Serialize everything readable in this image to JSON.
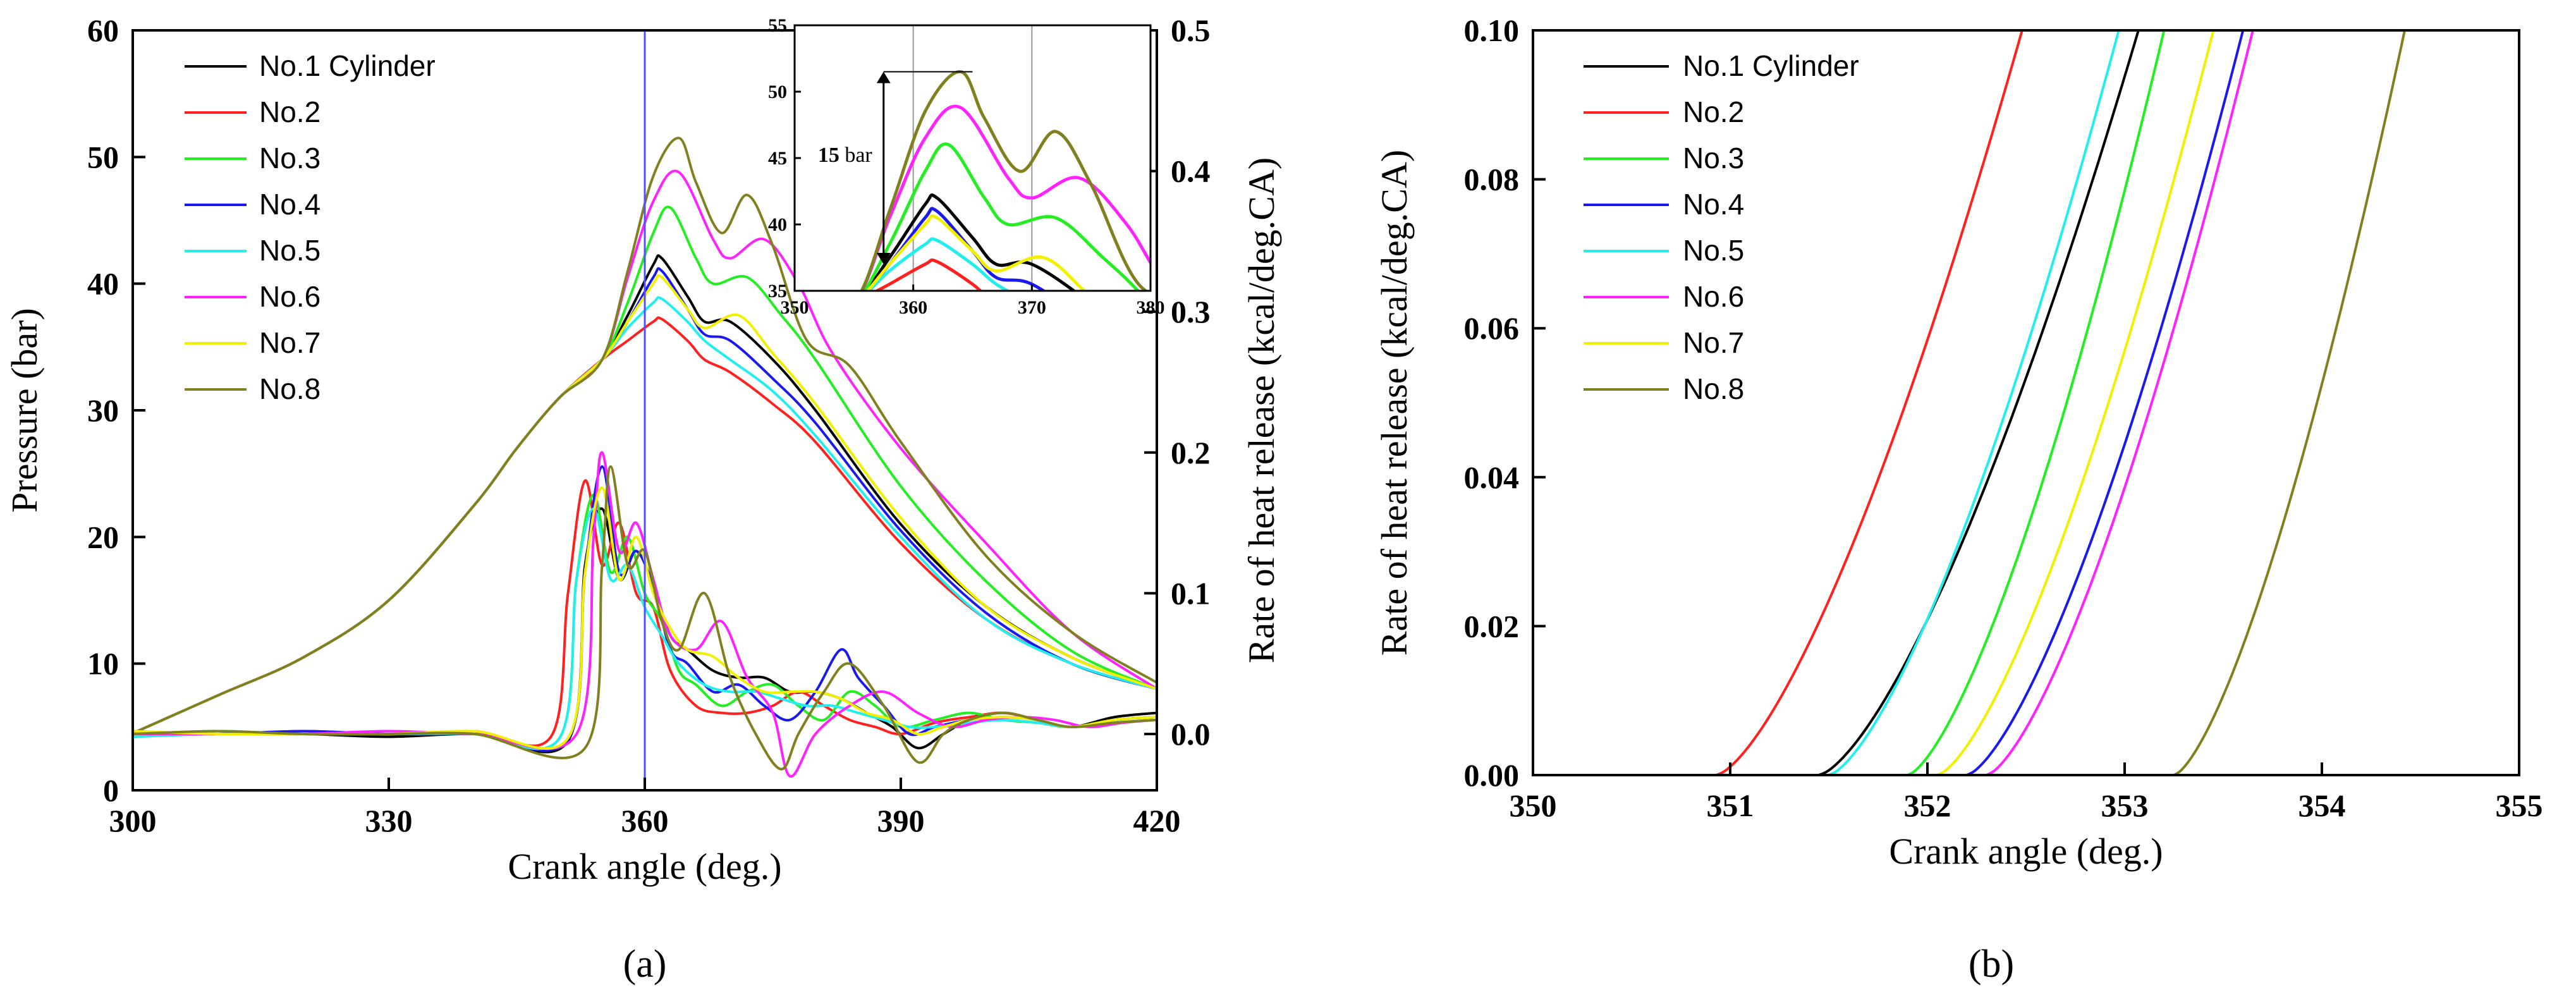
{
  "colors": {
    "No.1 Cylinder": "#000000",
    "No.2": "#ff2020",
    "No.3": "#22ee22",
    "No.4": "#1a1aee",
    "No.5": "#22eeee",
    "No.6": "#ff22ff",
    "No.7": "#f0f000",
    "No.8": "#808020",
    "marker_line": "#5050ff"
  },
  "chart_data": [
    {
      "type": "line",
      "panel_label": "(a)",
      "xlabel": "Crank angle (deg.)",
      "ylabel": "Pressure (bar)",
      "y2label": "Rate of heat release (kcal/deg.CA)",
      "xlim": [
        300,
        420
      ],
      "ylim": [
        0,
        60
      ],
      "y2lim": [
        -0.04,
        0.5
      ],
      "xticks": [
        "300",
        "330",
        "360",
        "390",
        "420"
      ],
      "yticks": [
        "0",
        "10",
        "20",
        "30",
        "40",
        "50",
        "60"
      ],
      "y2ticks": [
        "0.0",
        "0.1",
        "0.2",
        "0.3",
        "0.4",
        "0.5"
      ],
      "vertical_line_x": 360,
      "legend_position": "top-left",
      "legend": [
        "No.1 Cylinder",
        "No.2",
        "No.3",
        "No.4",
        "No.5",
        "No.6",
        "No.7",
        "No.8"
      ],
      "pressure_shared": {
        "x": [
          300,
          310,
          320,
          330,
          340,
          345,
          350,
          355
        ],
        "values": [
          4.5,
          7.5,
          10.5,
          15.0,
          22.5,
          27.0,
          31.0,
          34.0
        ]
      },
      "pressure_series": [
        {
          "name": "No.1 Cylinder",
          "x": [
            355,
            358,
            361,
            362,
            365,
            367,
            370,
            375,
            380,
            390,
            400,
            410,
            420
          ],
          "values": [
            34.5,
            37.5,
            41.5,
            42.0,
            39.0,
            37.0,
            37.0,
            34.0,
            30.0,
            21.0,
            14.5,
            10.5,
            8.0
          ]
        },
        {
          "name": "No.2",
          "x": [
            355,
            358,
            361,
            362,
            365,
            367,
            370,
            375,
            380,
            390,
            400,
            410,
            420
          ],
          "values": [
            34.0,
            35.5,
            37.0,
            37.2,
            35.5,
            34.0,
            33.0,
            30.5,
            27.5,
            19.5,
            13.5,
            10.0,
            8.0
          ]
        },
        {
          "name": "No.3",
          "x": [
            355,
            358,
            361,
            363,
            366,
            368,
            372,
            376,
            380,
            390,
            400,
            410,
            420
          ],
          "values": [
            34.5,
            38.5,
            44.0,
            46.0,
            42.0,
            40.0,
            40.5,
            37.5,
            34.0,
            24.0,
            16.5,
            11.0,
            8.0
          ]
        },
        {
          "name": "No.4",
          "x": [
            355,
            358,
            361,
            362,
            365,
            367,
            370,
            375,
            380,
            390,
            400,
            410,
            420
          ],
          "values": [
            34.5,
            37.0,
            40.5,
            41.0,
            38.0,
            36.0,
            35.5,
            32.5,
            29.0,
            20.5,
            14.0,
            10.0,
            8.0
          ]
        },
        {
          "name": "No.5",
          "x": [
            355,
            358,
            361,
            362,
            365,
            367,
            370,
            375,
            380,
            390,
            400,
            410,
            420
          ],
          "values": [
            34.5,
            36.5,
            38.5,
            38.8,
            37.0,
            35.5,
            34.0,
            31.5,
            28.0,
            20.0,
            13.5,
            10.0,
            8.0
          ]
        },
        {
          "name": "No.6",
          "x": [
            355,
            358,
            361,
            364,
            368,
            370,
            374,
            378,
            382,
            390,
            400,
            410,
            420
          ],
          "values": [
            35.5,
            40.5,
            46.5,
            48.8,
            43.5,
            42.0,
            43.5,
            40.0,
            34.5,
            27.0,
            19.5,
            12.5,
            8.0
          ]
        },
        {
          "name": "No.7",
          "x": [
            355,
            358,
            361,
            362,
            365,
            367,
            371,
            375,
            380,
            390,
            400,
            410,
            420
          ],
          "values": [
            34.5,
            37.0,
            40.0,
            40.5,
            38.0,
            36.5,
            37.5,
            34.5,
            30.5,
            21.5,
            14.5,
            10.5,
            8.0
          ]
        },
        {
          "name": "No.8",
          "x": [
            355,
            358,
            361,
            364,
            366,
            369,
            372,
            375,
            379,
            384,
            390,
            400,
            410,
            420
          ],
          "values": [
            35.0,
            41.0,
            48.5,
            51.5,
            48.0,
            44.0,
            47.0,
            43.0,
            35.5,
            33.5,
            27.5,
            18.5,
            12.5,
            8.5
          ]
        }
      ],
      "heat_release_series": [
        {
          "name": "No.1 Cylinder",
          "x": [
            300,
            310,
            320,
            330,
            340,
            351,
            353,
            355,
            357,
            359,
            361,
            363,
            365,
            368,
            371,
            374,
            377,
            380,
            383,
            386,
            389,
            392,
            395,
            398,
            402,
            406,
            410,
            415,
            420
          ],
          "values": [
            0.0,
            0.0,
            0.0,
            -0.002,
            0.0,
            -0.005,
            0.12,
            0.16,
            0.11,
            0.13,
            0.105,
            0.07,
            0.06,
            0.045,
            0.04,
            0.04,
            0.03,
            0.03,
            0.025,
            0.015,
            0.005,
            -0.01,
            0.0,
            0.01,
            0.015,
            0.01,
            0.005,
            0.012,
            0.015
          ]
        },
        {
          "name": "No.2",
          "x": [
            300,
            310,
            320,
            330,
            340,
            349,
            351,
            353,
            355,
            357,
            359,
            361,
            363,
            366,
            369,
            372,
            375,
            378,
            381,
            384,
            387,
            390,
            394,
            398,
            402,
            406,
            410,
            415,
            420
          ],
          "values": [
            0.002,
            0.0,
            0.002,
            0.0,
            0.002,
            -0.002,
            0.1,
            0.18,
            0.12,
            0.15,
            0.1,
            0.09,
            0.045,
            0.02,
            0.015,
            0.015,
            0.02,
            0.03,
            0.02,
            0.01,
            0.005,
            0.0,
            0.008,
            0.012,
            0.015,
            0.01,
            0.005,
            0.01,
            0.012
          ]
        },
        {
          "name": "No.3",
          "x": [
            300,
            310,
            320,
            330,
            340,
            350,
            352,
            354,
            356,
            358,
            360,
            362,
            364,
            366,
            369,
            372,
            375,
            378,
            381,
            384,
            387,
            390,
            394,
            398,
            402,
            406,
            410,
            415,
            420
          ],
          "values": [
            0.0,
            0.002,
            0.0,
            0.0,
            0.0,
            -0.003,
            0.11,
            0.17,
            0.115,
            0.14,
            0.1,
            0.08,
            0.045,
            0.035,
            0.02,
            0.03,
            0.035,
            0.02,
            0.01,
            0.03,
            0.02,
            0.005,
            0.01,
            0.015,
            0.01,
            0.008,
            0.005,
            0.01,
            0.012
          ]
        },
        {
          "name": "No.4",
          "x": [
            300,
            310,
            320,
            330,
            340,
            351,
            353,
            355,
            357,
            359,
            361,
            363,
            365,
            368,
            371,
            374,
            377,
            380,
            383,
            385,
            388,
            391,
            394,
            398,
            402,
            406,
            410,
            415,
            420
          ],
          "values": [
            0.0,
            0.0,
            0.002,
            0.0,
            0.0,
            -0.004,
            0.115,
            0.19,
            0.115,
            0.13,
            0.105,
            0.06,
            0.05,
            0.03,
            0.035,
            0.02,
            0.01,
            0.03,
            0.06,
            0.04,
            0.02,
            0.0,
            0.005,
            0.01,
            0.012,
            0.01,
            0.005,
            0.01,
            0.012
          ]
        },
        {
          "name": "No.5",
          "x": [
            300,
            310,
            320,
            330,
            340,
            350,
            352,
            354,
            356,
            358,
            360,
            362,
            364,
            367,
            370,
            373,
            376,
            379,
            382,
            385,
            388,
            391,
            394,
            398,
            402,
            406,
            410,
            415,
            420
          ],
          "values": [
            -0.002,
            0.0,
            0.0,
            0.0,
            0.0,
            -0.003,
            0.11,
            0.16,
            0.11,
            0.12,
            0.09,
            0.07,
            0.05,
            0.035,
            0.03,
            0.03,
            0.025,
            0.02,
            0.02,
            0.015,
            0.01,
            0.005,
            0.005,
            0.008,
            0.01,
            0.008,
            0.005,
            0.008,
            0.01
          ]
        },
        {
          "name": "No.6",
          "x": [
            300,
            310,
            320,
            330,
            340,
            352,
            354,
            355,
            357,
            359,
            361,
            363,
            366,
            369,
            372,
            375,
            377,
            380,
            384,
            388,
            392,
            396,
            400,
            404,
            408,
            412,
            416,
            420
          ],
          "values": [
            0.0,
            0.0,
            0.0,
            0.002,
            0.0,
            0.0,
            0.14,
            0.2,
            0.13,
            0.15,
            0.11,
            0.07,
            0.06,
            0.08,
            0.04,
            0.015,
            -0.03,
            0.0,
            0.02,
            0.03,
            0.015,
            0.005,
            0.01,
            0.012,
            0.01,
            0.005,
            0.008,
            0.01
          ]
        },
        {
          "name": "No.7",
          "x": [
            300,
            310,
            320,
            330,
            340,
            351,
            353,
            355,
            357,
            359,
            361,
            363,
            365,
            368,
            371,
            374,
            377,
            380,
            383,
            386,
            389,
            392,
            395,
            398,
            402,
            406,
            410,
            415,
            420
          ],
          "values": [
            0.002,
            0.0,
            0.0,
            0.0,
            0.002,
            -0.003,
            0.115,
            0.175,
            0.11,
            0.14,
            0.1,
            0.075,
            0.06,
            0.055,
            0.04,
            0.03,
            0.03,
            0.03,
            0.025,
            0.015,
            0.01,
            0.0,
            0.005,
            0.01,
            0.012,
            0.01,
            0.005,
            0.01,
            0.012
          ]
        },
        {
          "name": "No.8",
          "x": [
            300,
            310,
            320,
            330,
            340,
            353,
            355,
            356,
            358,
            360,
            362,
            364,
            367,
            370,
            373,
            376,
            378,
            381,
            384,
            388,
            392,
            395,
            398,
            402,
            406,
            410,
            415,
            420
          ],
          "values": [
            0.0,
            0.002,
            0.0,
            0.0,
            0.0,
            -0.01,
            0.12,
            0.19,
            0.12,
            0.13,
            0.08,
            0.06,
            0.1,
            0.04,
            0.0,
            -0.025,
            0.0,
            0.03,
            0.05,
            0.02,
            -0.02,
            0.0,
            0.01,
            0.015,
            0.01,
            0.005,
            0.008,
            0.01
          ]
        }
      ],
      "inset": {
        "xlim": [
          350,
          380
        ],
        "ylim": [
          35,
          55
        ],
        "xticks": [
          "350",
          "360",
          "370",
          "380"
        ],
        "yticks": [
          "35",
          "40",
          "45",
          "50",
          "55"
        ],
        "vertical_gridlines": [
          360,
          370
        ],
        "annotation": "15 bar",
        "annotation_arrow_y": [
          37,
          51.5
        ]
      }
    },
    {
      "type": "line",
      "panel_label": "(b)",
      "xlabel": "Crank angle (deg.)",
      "ylabel": "Rate of heat release (kcal/deg.CA)",
      "xlim": [
        350,
        355
      ],
      "ylim": [
        0,
        0.1
      ],
      "xticks": [
        "350",
        "351",
        "352",
        "353",
        "354",
        "355"
      ],
      "yticks": [
        "0.00",
        "0.02",
        "0.04",
        "0.06",
        "0.08",
        "0.10"
      ],
      "legend_position": "top-left",
      "legend": [
        "No.1 Cylinder",
        "No.2",
        "No.3",
        "No.4",
        "No.5",
        "No.6",
        "No.7",
        "No.8"
      ],
      "series": [
        {
          "name": "No.1 Cylinder",
          "x_start": 351.45,
          "x_end": 353.07
        },
        {
          "name": "No.2",
          "x_start": 350.93,
          "x_end": 352.48
        },
        {
          "name": "No.3",
          "x_start": 351.9,
          "x_end": 353.2
        },
        {
          "name": "No.4",
          "x_start": 352.2,
          "x_end": 353.6
        },
        {
          "name": "No.5",
          "x_start": 351.5,
          "x_end": 352.97
        },
        {
          "name": "No.6",
          "x_start": 352.3,
          "x_end": 353.65
        },
        {
          "name": "No.7",
          "x_start": 352.05,
          "x_end": 353.45
        },
        {
          "name": "No.8",
          "x_start": 353.25,
          "x_end": 354.42
        }
      ]
    }
  ]
}
